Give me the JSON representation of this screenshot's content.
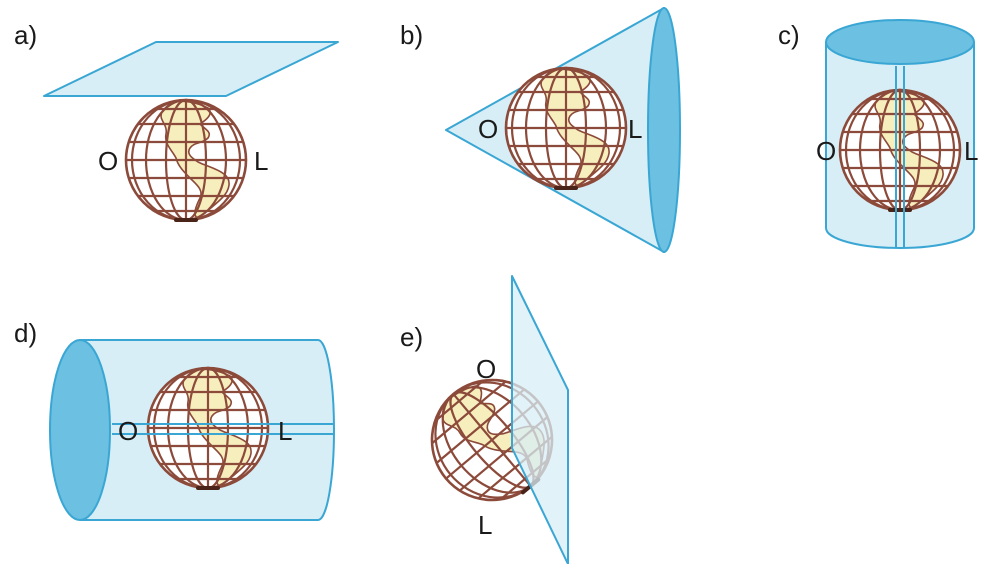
{
  "colors": {
    "surface_fill": "#d7eef6",
    "surface_stroke": "#3aa6d4",
    "surface_dark": "#6cc0e1",
    "globe_grid": "#8c4a3a",
    "land": "#f7eebd"
  },
  "panels": [
    {
      "id": "a",
      "label": "a)",
      "projection": "plane",
      "west": "O",
      "east": "L"
    },
    {
      "id": "b",
      "label": "b)",
      "projection": "cone",
      "west": "O",
      "east": "L"
    },
    {
      "id": "c",
      "label": "c)",
      "projection": "vertical-cylinder",
      "west": "O",
      "east": "L"
    },
    {
      "id": "d",
      "label": "d)",
      "projection": "horizontal-cylinder",
      "west": "O",
      "east": "L"
    },
    {
      "id": "e",
      "label": "e)",
      "projection": "tilted-plane",
      "top": "O",
      "bottom": "L"
    }
  ]
}
